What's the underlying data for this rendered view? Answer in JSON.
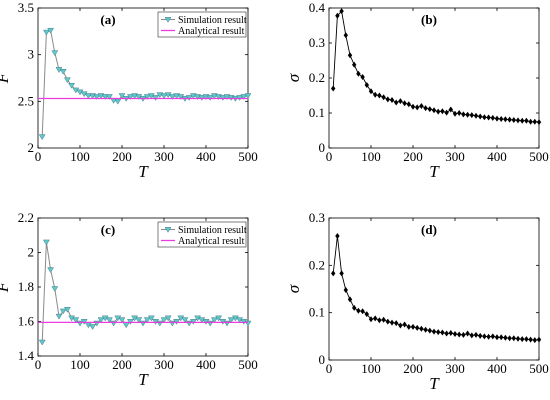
{
  "colors": {
    "simulation_line": "#8a8a8a",
    "simulation_marker": "#5ec8cf",
    "analytical_line": "#e83ee0",
    "sigma_marker": "#000000"
  },
  "chart_data": [
    {
      "id": "a",
      "type": "line",
      "panel_label": "(a)",
      "xlabel": "T",
      "ylabel": "F",
      "xlim": [
        0,
        500
      ],
      "ylim": [
        2,
        3.5
      ],
      "xticks": [
        0,
        100,
        200,
        300,
        400,
        500
      ],
      "xtick_labels": [
        "0",
        "100",
        "200",
        "300",
        "400",
        "500"
      ],
      "yticks": [
        2,
        2.5,
        3,
        3.5
      ],
      "ytick_labels": [
        "2",
        "2.5",
        "3",
        "3.5"
      ],
      "legend": {
        "position": "top-right",
        "entries": [
          "Simulation result",
          "Analytical result"
        ]
      },
      "series": [
        {
          "name": "Simulation result",
          "marker": "triangle-down",
          "x": [
            10,
            20,
            30,
            40,
            50,
            60,
            70,
            80,
            90,
            100,
            110,
            120,
            130,
            140,
            150,
            160,
            170,
            180,
            190,
            200,
            210,
            220,
            230,
            240,
            250,
            260,
            270,
            280,
            290,
            300,
            310,
            320,
            330,
            340,
            350,
            360,
            370,
            380,
            390,
            400,
            410,
            420,
            430,
            440,
            450,
            460,
            470,
            480,
            490,
            500
          ],
          "y": [
            2.12,
            3.24,
            3.26,
            3.02,
            2.84,
            2.82,
            2.73,
            2.67,
            2.62,
            2.6,
            2.58,
            2.56,
            2.56,
            2.55,
            2.56,
            2.55,
            2.55,
            2.51,
            2.5,
            2.56,
            2.53,
            2.55,
            2.56,
            2.55,
            2.53,
            2.55,
            2.56,
            2.54,
            2.57,
            2.56,
            2.57,
            2.55,
            2.56,
            2.55,
            2.53,
            2.54,
            2.56,
            2.55,
            2.54,
            2.55,
            2.54,
            2.56,
            2.55,
            2.54,
            2.55,
            2.54,
            2.53,
            2.54,
            2.55,
            2.56
          ]
        },
        {
          "name": "Analytical result",
          "x": [
            0,
            500
          ],
          "y": [
            2.53,
            2.53
          ]
        }
      ]
    },
    {
      "id": "b",
      "type": "line",
      "panel_label": "(b)",
      "xlabel": "T",
      "ylabel": "σ",
      "xlim": [
        0,
        500
      ],
      "ylim": [
        0,
        0.4
      ],
      "xticks": [
        0,
        100,
        200,
        300,
        400,
        500
      ],
      "xtick_labels": [
        "0",
        "100",
        "200",
        "300",
        "400",
        "500"
      ],
      "yticks": [
        0,
        0.1,
        0.2,
        0.3,
        0.4
      ],
      "ytick_labels": [
        "0",
        "0.1",
        "0.2",
        "0.3",
        "0.4"
      ],
      "series": [
        {
          "marker": "diamond",
          "x": [
            10,
            20,
            30,
            40,
            50,
            60,
            70,
            80,
            90,
            100,
            110,
            120,
            130,
            140,
            150,
            160,
            170,
            180,
            190,
            200,
            210,
            220,
            230,
            240,
            250,
            260,
            270,
            280,
            290,
            300,
            310,
            320,
            330,
            340,
            350,
            360,
            370,
            380,
            390,
            400,
            410,
            420,
            430,
            440,
            450,
            460,
            470,
            480,
            490,
            500
          ],
          "y": [
            0.17,
            0.378,
            0.391,
            0.322,
            0.265,
            0.238,
            0.212,
            0.203,
            0.18,
            0.162,
            0.152,
            0.15,
            0.145,
            0.139,
            0.137,
            0.13,
            0.134,
            0.128,
            0.125,
            0.118,
            0.116,
            0.12,
            0.114,
            0.111,
            0.108,
            0.104,
            0.105,
            0.101,
            0.11,
            0.098,
            0.1,
            0.096,
            0.095,
            0.094,
            0.092,
            0.09,
            0.088,
            0.087,
            0.086,
            0.084,
            0.083,
            0.082,
            0.081,
            0.08,
            0.079,
            0.078,
            0.078,
            0.075,
            0.075,
            0.074
          ]
        }
      ]
    },
    {
      "id": "c",
      "type": "line",
      "panel_label": "(c)",
      "xlabel": "T",
      "ylabel": "F",
      "xlim": [
        0,
        500
      ],
      "ylim": [
        1.4,
        2.2
      ],
      "xticks": [
        0,
        100,
        200,
        300,
        400,
        500
      ],
      "xtick_labels": [
        "0",
        "100",
        "200",
        "300",
        "400",
        "500"
      ],
      "yticks": [
        1.4,
        1.6,
        1.8,
        2.0,
        2.2
      ],
      "ytick_labels": [
        "1.4",
        "1.6",
        "1.8",
        "2",
        "2.2"
      ],
      "legend": {
        "position": "top-right",
        "entries": [
          "Simulation result",
          "Analytical result"
        ]
      },
      "series": [
        {
          "name": "Simulation result",
          "marker": "triangle-down",
          "x": [
            10,
            20,
            30,
            40,
            50,
            60,
            70,
            80,
            90,
            100,
            110,
            120,
            130,
            140,
            150,
            160,
            170,
            180,
            190,
            200,
            210,
            220,
            230,
            240,
            250,
            260,
            270,
            280,
            290,
            300,
            310,
            320,
            330,
            340,
            350,
            360,
            370,
            380,
            390,
            400,
            410,
            420,
            430,
            440,
            450,
            460,
            470,
            480,
            490,
            500
          ],
          "y": [
            1.48,
            2.06,
            1.9,
            1.79,
            1.63,
            1.66,
            1.67,
            1.62,
            1.61,
            1.59,
            1.6,
            1.58,
            1.57,
            1.59,
            1.61,
            1.62,
            1.61,
            1.59,
            1.62,
            1.61,
            1.58,
            1.6,
            1.62,
            1.61,
            1.59,
            1.61,
            1.62,
            1.6,
            1.59,
            1.61,
            1.62,
            1.59,
            1.6,
            1.62,
            1.61,
            1.59,
            1.6,
            1.62,
            1.61,
            1.6,
            1.59,
            1.61,
            1.62,
            1.6,
            1.59,
            1.61,
            1.62,
            1.61,
            1.6,
            1.59
          ]
        },
        {
          "name": "Analytical result",
          "x": [
            0,
            500
          ],
          "y": [
            1.595,
            1.595
          ]
        }
      ]
    },
    {
      "id": "d",
      "type": "line",
      "panel_label": "(d)",
      "xlabel": "T",
      "ylabel": "σ",
      "xlim": [
        0,
        500
      ],
      "ylim": [
        0,
        0.3
      ],
      "xticks": [
        0,
        100,
        200,
        300,
        400,
        500
      ],
      "xtick_labels": [
        "0",
        "100",
        "200",
        "300",
        "400",
        "500"
      ],
      "yticks": [
        0,
        0.1,
        0.2,
        0.3
      ],
      "ytick_labels": [
        "0",
        "0.1",
        "0.2",
        "0.3"
      ],
      "series": [
        {
          "marker": "diamond",
          "x": [
            10,
            20,
            30,
            40,
            50,
            60,
            70,
            80,
            90,
            100,
            110,
            120,
            130,
            140,
            150,
            160,
            170,
            180,
            190,
            200,
            210,
            220,
            230,
            240,
            250,
            260,
            270,
            280,
            290,
            300,
            310,
            320,
            330,
            340,
            350,
            360,
            370,
            380,
            390,
            400,
            410,
            420,
            430,
            440,
            450,
            460,
            470,
            480,
            490,
            500
          ],
          "y": [
            0.183,
            0.262,
            0.183,
            0.148,
            0.128,
            0.11,
            0.104,
            0.103,
            0.097,
            0.086,
            0.088,
            0.084,
            0.085,
            0.081,
            0.079,
            0.078,
            0.073,
            0.075,
            0.07,
            0.07,
            0.068,
            0.066,
            0.064,
            0.062,
            0.06,
            0.059,
            0.058,
            0.056,
            0.057,
            0.055,
            0.054,
            0.053,
            0.056,
            0.052,
            0.053,
            0.051,
            0.05,
            0.049,
            0.05,
            0.048,
            0.048,
            0.047,
            0.046,
            0.046,
            0.045,
            0.044,
            0.044,
            0.043,
            0.042,
            0.043
          ]
        }
      ]
    }
  ]
}
